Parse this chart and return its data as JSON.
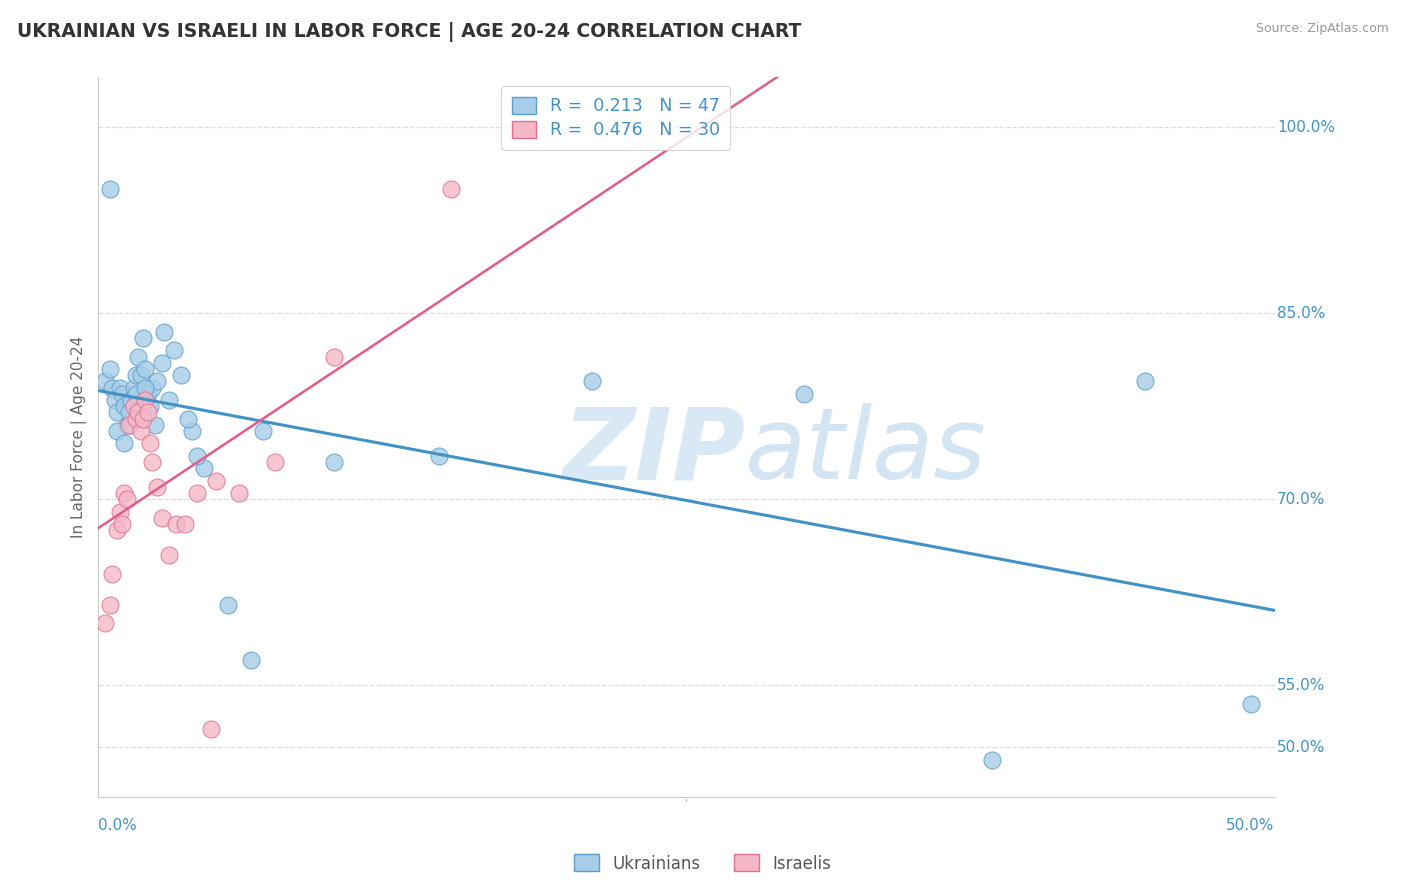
{
  "title": "UKRAINIAN VS ISRAELI IN LABOR FORCE | AGE 20-24 CORRELATION CHART",
  "source": "Source: ZipAtlas.com",
  "ylabel": "In Labor Force | Age 20-24",
  "xmin": 0.0,
  "xmax": 50.0,
  "ymin": 46.0,
  "ymax": 104.0,
  "ukrainian_R": 0.213,
  "ukrainian_N": 47,
  "israeli_R": 0.476,
  "israeli_N": 30,
  "ukrainian_dot_color": "#a8cde8",
  "ukrainian_edge_color": "#5b9ec9",
  "israeli_dot_color": "#f4b8c8",
  "israeli_edge_color": "#e07090",
  "ukrainian_line_color": "#4292c6",
  "israeli_line_color": "#e05c8a",
  "grid_color": "#dddddd",
  "yticks": [
    50.0,
    55.0,
    70.0,
    85.0,
    100.0
  ],
  "ytick_labels": [
    "50.0%",
    "55.0%",
    "70.0%",
    "85.0%",
    "100.0%"
  ],
  "ukrainians_x": [
    0.3,
    0.5,
    0.6,
    0.7,
    0.8,
    0.9,
    1.0,
    1.1,
    1.2,
    1.3,
    1.4,
    1.5,
    1.6,
    1.7,
    1.8,
    2.0,
    2.1,
    2.2,
    2.3,
    2.5,
    2.7,
    3.0,
    3.5,
    4.0,
    4.5,
    5.5,
    7.0,
    10.0,
    14.5,
    21.0,
    30.0,
    38.0,
    44.5,
    49.0,
    1.9,
    2.8,
    3.2,
    4.2,
    1.6,
    0.5,
    2.4,
    2.0,
    1.3,
    0.8,
    1.1,
    3.8,
    6.5
  ],
  "ukrainians_y": [
    79.5,
    80.5,
    79.0,
    78.0,
    77.0,
    79.0,
    78.5,
    77.5,
    76.0,
    77.0,
    78.0,
    79.0,
    80.0,
    81.5,
    80.0,
    80.5,
    78.5,
    77.5,
    79.0,
    79.5,
    81.0,
    78.0,
    80.0,
    75.5,
    72.5,
    61.5,
    75.5,
    73.0,
    73.5,
    79.5,
    78.5,
    49.0,
    79.5,
    53.5,
    83.0,
    83.5,
    82.0,
    73.5,
    78.5,
    95.0,
    76.0,
    79.0,
    76.0,
    75.5,
    74.5,
    76.5,
    57.0
  ],
  "israelis_x": [
    0.3,
    0.5,
    0.6,
    0.8,
    0.9,
    1.0,
    1.1,
    1.2,
    1.3,
    1.5,
    1.6,
    1.7,
    1.8,
    1.9,
    2.0,
    2.1,
    2.2,
    2.3,
    2.5,
    2.7,
    3.0,
    3.3,
    3.7,
    4.2,
    5.0,
    6.0,
    4.8,
    7.5,
    10.0,
    15.0
  ],
  "israelis_y": [
    60.0,
    61.5,
    64.0,
    67.5,
    69.0,
    68.0,
    70.5,
    70.0,
    76.0,
    77.5,
    76.5,
    77.0,
    75.5,
    76.5,
    78.0,
    77.0,
    74.5,
    73.0,
    71.0,
    68.5,
    65.5,
    68.0,
    68.0,
    70.5,
    71.5,
    70.5,
    51.5,
    73.0,
    81.5,
    95.0
  ]
}
